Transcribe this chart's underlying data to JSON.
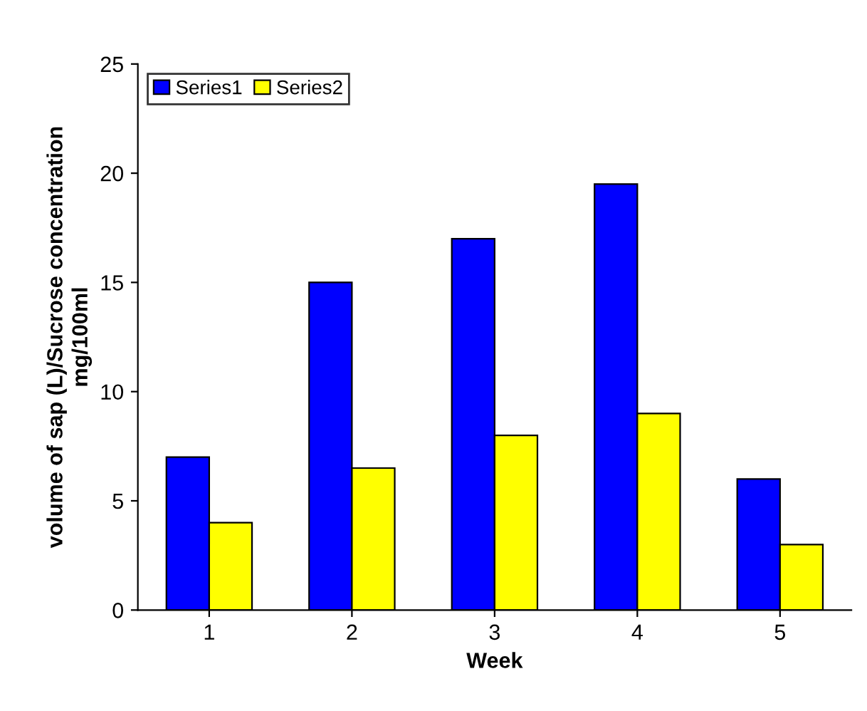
{
  "chart_data": {
    "type": "bar",
    "xlabel": "Week",
    "ylabel": "volume of sap (L)/Sucrose concentration\nmg/100ml",
    "categories": [
      "1",
      "2",
      "3",
      "4",
      "5"
    ],
    "series": [
      {
        "name": "Series1",
        "color": "#0000ff",
        "values": [
          7,
          15,
          17,
          19.5,
          6
        ]
      },
      {
        "name": "Series2",
        "color": "#ffff00",
        "values": [
          4,
          6.5,
          8,
          9,
          3
        ]
      }
    ],
    "ylim": [
      0,
      25
    ],
    "yticks": [
      0,
      5,
      10,
      15,
      20,
      25
    ],
    "grid": false,
    "legend": "top left"
  }
}
